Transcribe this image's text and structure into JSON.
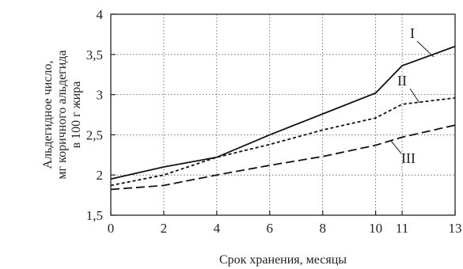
{
  "chart_data": {
    "type": "line",
    "xlabel": "Срок хранения, месяцы",
    "ylabel_lines": [
      "Альдегидное число,",
      "мг коричного альдегида",
      "в 100 г жира"
    ],
    "x_ticks": [
      "0",
      "2",
      "4",
      "6",
      "8",
      "10",
      "11",
      "13"
    ],
    "y_ticks": [
      {
        "value": 1.5,
        "label": "1,5"
      },
      {
        "value": 2,
        "label": "2"
      },
      {
        "value": 2.5,
        "label": "2,5"
      },
      {
        "value": 3,
        "label": "3"
      },
      {
        "value": 3.5,
        "label": "3,5"
      },
      {
        "value": 4,
        "label": "4"
      }
    ],
    "ylim": [
      1.5,
      4
    ],
    "grid": true,
    "series": [
      {
        "name": "I",
        "style": "solid",
        "x": [
          "0",
          "2",
          "4",
          "6",
          "8",
          "10",
          "11",
          "13"
        ],
        "values": [
          1.95,
          2.1,
          2.22,
          2.5,
          2.76,
          3.02,
          3.36,
          3.6
        ]
      },
      {
        "name": "II",
        "style": "short-dash",
        "x": [
          "0",
          "2",
          "4",
          "6",
          "8",
          "10",
          "11",
          "13"
        ],
        "values": [
          1.87,
          2.0,
          2.22,
          2.38,
          2.56,
          2.71,
          2.88,
          2.96
        ]
      },
      {
        "name": "III",
        "style": "long-dash",
        "x": [
          "0",
          "2",
          "4",
          "6",
          "8",
          "10",
          "11",
          "13"
        ],
        "values": [
          1.82,
          1.87,
          2.0,
          2.12,
          2.23,
          2.37,
          2.47,
          2.62
        ]
      }
    ]
  }
}
